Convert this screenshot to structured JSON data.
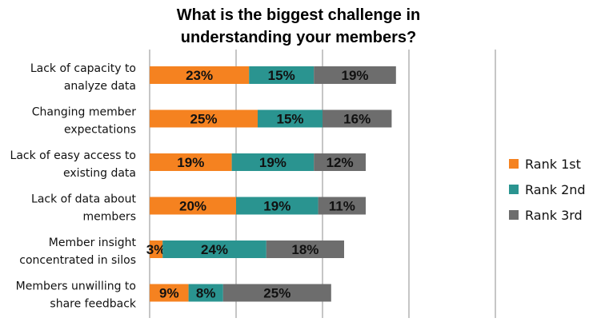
{
  "chart_data": {
    "type": "bar",
    "orientation": "horizontal",
    "stacked": true,
    "title": "What is the biggest challenge in understanding your members?",
    "title_lines": [
      "What is the biggest challenge in",
      "understanding your members?"
    ],
    "categories": [
      "Lack of capacity to analyze data",
      "Changing member expectations",
      "Lack of easy access to existing data",
      "Lack of data about members",
      "Member insight concentrated in silos",
      "Members unwilling to share feedback"
    ],
    "category_lines": [
      [
        "Lack of capacity to",
        "analyze data"
      ],
      [
        "Changing member",
        "expectations"
      ],
      [
        "Lack of easy access to",
        "existing data"
      ],
      [
        "Lack of data about",
        "members"
      ],
      [
        "Member insight",
        "concentrated in silos"
      ],
      [
        "Members unwilling to",
        "share feedback"
      ]
    ],
    "series": [
      {
        "name": "Rank 1st",
        "color": "#f58220",
        "values": [
          23,
          25,
          19,
          20,
          3,
          9
        ]
      },
      {
        "name": "Rank 2nd",
        "color": "#2a9490",
        "values": [
          15,
          15,
          19,
          19,
          24,
          8
        ]
      },
      {
        "name": "Rank 3rd",
        "color": "#6d6d6d",
        "values": [
          19,
          16,
          12,
          11,
          18,
          25
        ]
      }
    ],
    "value_suffix": "%",
    "xlim": [
      0,
      80
    ],
    "grid": true,
    "legend_position": "right"
  }
}
